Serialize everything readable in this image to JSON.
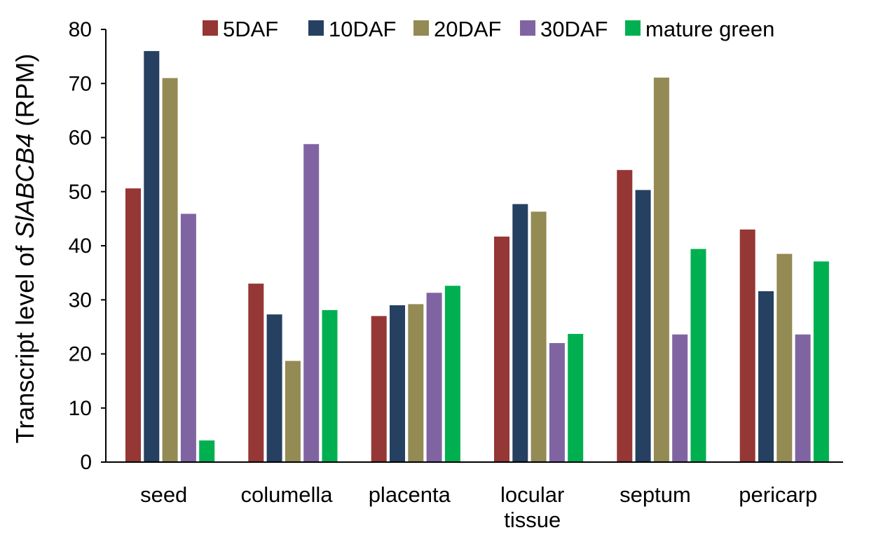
{
  "chart_data": {
    "type": "bar",
    "title": "",
    "xlabel": "",
    "ylabel_prefix": "Transcript level of ",
    "ylabel_gene": "SlABCB4",
    "ylabel_suffix": " (RPM)",
    "ylim": [
      0,
      80
    ],
    "yticks": [
      "0",
      "10",
      "20",
      "30",
      "40",
      "50",
      "60",
      "70",
      "80"
    ],
    "grid": false,
    "legend_position": "top",
    "categories": [
      [
        "seed"
      ],
      [
        "columella"
      ],
      [
        "placenta"
      ],
      [
        "locular",
        "tissue"
      ],
      [
        "septum"
      ],
      [
        "pericarp"
      ]
    ],
    "series": [
      {
        "name": "5DAF",
        "color": "#953735",
        "values": [
          50.6,
          33.0,
          27.0,
          41.7,
          54.0,
          43.0
        ]
      },
      {
        "name": "10DAF",
        "color": "#254061",
        "values": [
          76.0,
          27.3,
          29.0,
          47.7,
          50.3,
          31.6
        ]
      },
      {
        "name": "20DAF",
        "color": "#948A54",
        "values": [
          71.0,
          18.7,
          29.2,
          46.3,
          71.1,
          38.5
        ]
      },
      {
        "name": "30DAF",
        "color": "#8064A2",
        "values": [
          45.9,
          58.8,
          31.3,
          22.0,
          23.6,
          23.6
        ]
      },
      {
        "name": "mature green",
        "color": "#00B050",
        "values": [
          4.0,
          28.1,
          32.6,
          23.7,
          39.4,
          37.1
        ]
      }
    ]
  }
}
